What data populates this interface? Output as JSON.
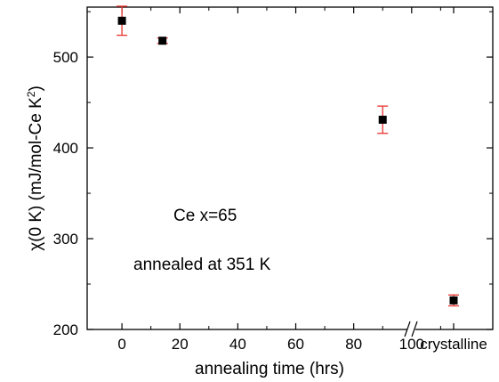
{
  "chart_data": {
    "type": "scatter",
    "xlabel": "annealing time (hrs)",
    "ylabel_main": "χ(0 K) (mJ/mol-Ce K",
    "ylabel_sup": "2",
    "ylabel_close": ")",
    "xlim": [
      -12,
      128
    ],
    "ylim": [
      200,
      555
    ],
    "x_ticks": [
      0,
      20,
      40,
      60,
      80,
      100
    ],
    "x_tick_labels": [
      "0",
      "20",
      "40",
      "60",
      "80",
      "100"
    ],
    "y_ticks": [
      200,
      300,
      400,
      500
    ],
    "y_tick_labels": [
      "200",
      "300",
      "400",
      "500"
    ],
    "category_tick_label": "crystalline",
    "axis_break": true,
    "marker_color": "#000000",
    "errorbar_color": "#e8322d",
    "points": [
      {
        "x": 0,
        "y": 540,
        "err": 16
      },
      {
        "x": 14,
        "y": 518,
        "err": 3
      },
      {
        "x": 90,
        "y": 431,
        "err": 15
      }
    ],
    "crystalline_point": {
      "y": 232,
      "err": 6
    },
    "annotations": [
      "Ce x=65",
      "annealed at 351 K"
    ]
  }
}
